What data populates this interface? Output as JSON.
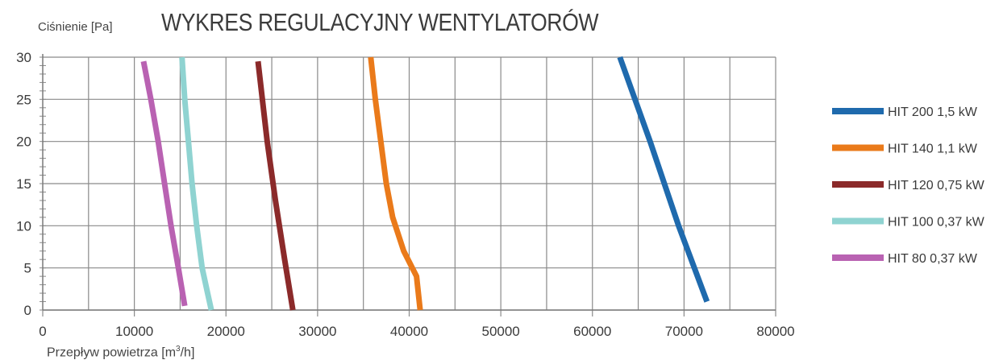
{
  "chart_data": {
    "type": "line",
    "title": "WYKRES REGULACYJNY WENTYLATORÓW",
    "ylabel": "Ciśnienie [Pa]",
    "xlabel_main": "Przepływ powietrza [m",
    "xlabel_sup": "3",
    "xlabel_end": "/h]",
    "xlim": [
      0,
      80000
    ],
    "ylim": [
      0,
      30
    ],
    "x_ticks": [
      "0",
      "10000",
      "20000",
      "30000",
      "40000",
      "50000",
      "60000",
      "70000",
      "80000"
    ],
    "y_ticks": [
      "0",
      "5",
      "10",
      "15",
      "20",
      "25",
      "30"
    ],
    "grid": true,
    "legend_position": "right",
    "series": [
      {
        "name": "HIT 200 1,5 kW",
        "color": "#1f6aad",
        "points": [
          [
            63000,
            30
          ],
          [
            66300,
            20
          ],
          [
            69400,
            10
          ],
          [
            72500,
            1
          ]
        ]
      },
      {
        "name": "HIT 140 1,1 kW",
        "color": "#ea7a1a",
        "points": [
          [
            35800,
            30
          ],
          [
            36300,
            25
          ],
          [
            36900,
            20
          ],
          [
            37500,
            15
          ],
          [
            38200,
            11
          ],
          [
            39400,
            7
          ],
          [
            40800,
            4
          ],
          [
            41200,
            0
          ]
        ]
      },
      {
        "name": "HIT 120 0,75 kW",
        "color": "#8b2a2a",
        "points": [
          [
            23500,
            29.5
          ],
          [
            24500,
            20
          ],
          [
            25400,
            13
          ],
          [
            26400,
            6
          ],
          [
            27300,
            0
          ]
        ]
      },
      {
        "name": "HIT 100 0,37 kW",
        "color": "#8fd3d1",
        "points": [
          [
            15200,
            30
          ],
          [
            15500,
            25
          ],
          [
            15900,
            20
          ],
          [
            16300,
            15
          ],
          [
            16800,
            10
          ],
          [
            17400,
            5
          ],
          [
            18000,
            2
          ],
          [
            18400,
            0
          ]
        ]
      },
      {
        "name": "HIT  80 0,37 kW",
        "color": "#b962b2",
        "points": [
          [
            11000,
            29.5
          ],
          [
            11800,
            25
          ],
          [
            12600,
            20
          ],
          [
            13300,
            15
          ],
          [
            14000,
            10
          ],
          [
            14800,
            5
          ],
          [
            15500,
            0.5
          ]
        ]
      }
    ]
  }
}
